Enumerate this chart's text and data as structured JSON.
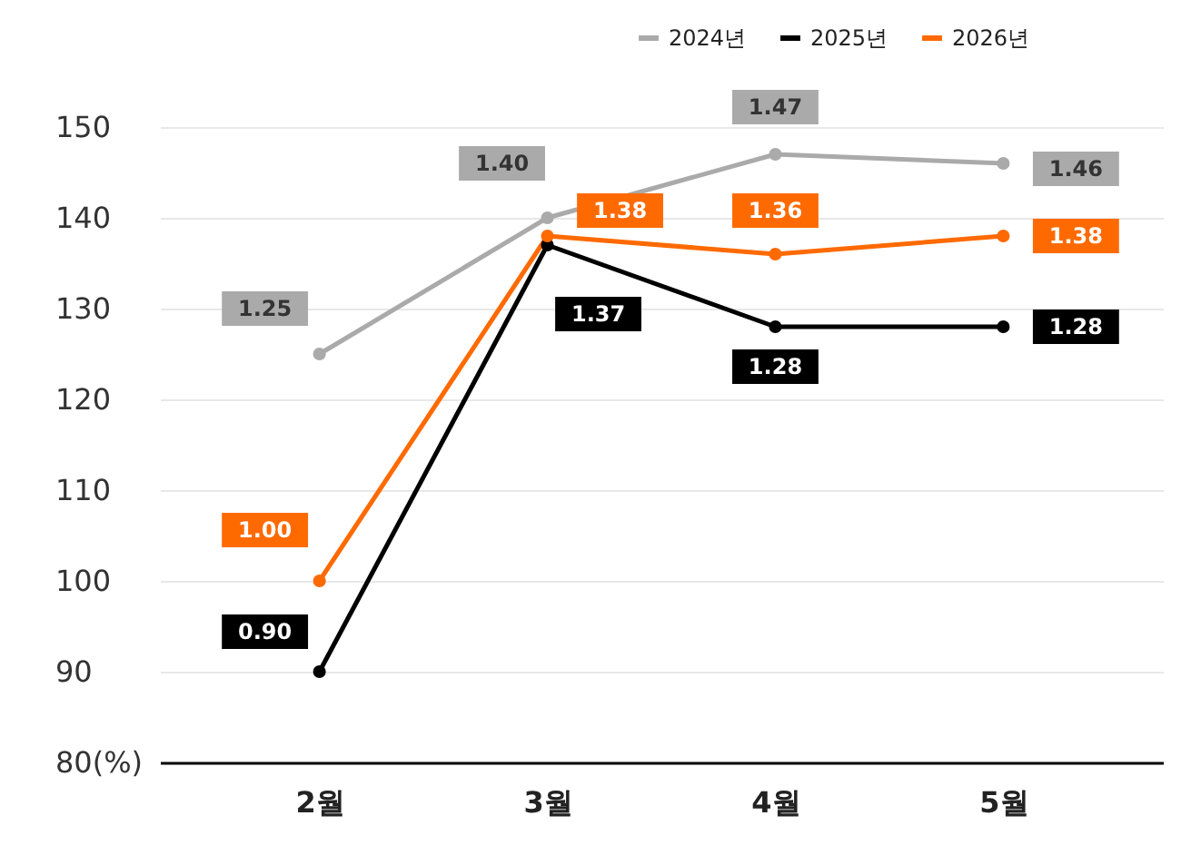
{
  "chart_data": {
    "type": "line",
    "categories": [
      "2월",
      "3월",
      "4월",
      "5월"
    ],
    "series": [
      {
        "name": "2024년",
        "color": "#aaaaaa",
        "values": [
          125,
          140,
          147,
          146
        ]
      },
      {
        "name": "2025년",
        "color": "#000000",
        "values": [
          90,
          137,
          128,
          128
        ]
      },
      {
        "name": "2026년",
        "color": "#ff6a00",
        "values": [
          100,
          138,
          136,
          138
        ]
      }
    ],
    "annotations": [
      {
        "text": "1.25",
        "x": "2월",
        "y": 125
      },
      {
        "text": "1.40",
        "x": "3월",
        "y": 140
      },
      {
        "text": "1.47",
        "x": "4월",
        "y": 147
      },
      {
        "text": "1.46",
        "x": "5월",
        "y": 146
      },
      {
        "text": "0.90",
        "x": "2월",
        "y": 90
      },
      {
        "text": "1.37",
        "x": "3월",
        "y": 137
      },
      {
        "text": "1.28",
        "x": "4월",
        "y": 128
      },
      {
        "text": "1.28",
        "x": "5월",
        "y": 128
      },
      {
        "text": "1.00",
        "x": "2월",
        "y": 100
      },
      {
        "text": "1.38",
        "x": "3월",
        "y": 138
      },
      {
        "text": "1.36",
        "x": "4월",
        "y": 136
      },
      {
        "text": "1.38",
        "x": "5월",
        "y": 138
      }
    ],
    "ylim": [
      80,
      150
    ],
    "yticks": [
      {
        "value": 80,
        "label": "80(%)"
      },
      90,
      100,
      110,
      120,
      130,
      140,
      150
    ],
    "grid": "y",
    "legend": "top right",
    "marker": "circle",
    "line_style": "solid"
  }
}
